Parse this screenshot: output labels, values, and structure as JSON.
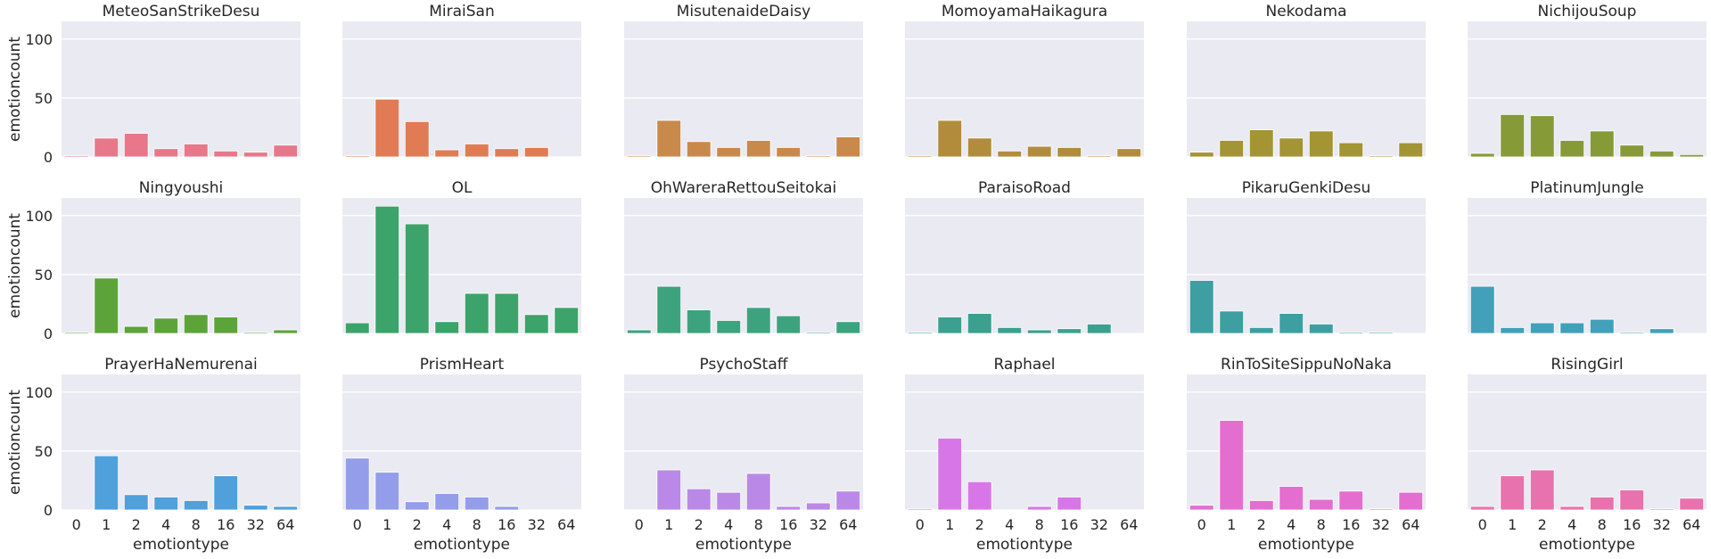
{
  "chart_data": {
    "type": "bar",
    "layout": "facet-grid",
    "rows": 3,
    "cols": 6,
    "xlabel": "emotiontype",
    "ylabel": "emotioncount",
    "categories": [
      "0",
      "1",
      "2",
      "4",
      "8",
      "16",
      "32",
      "64"
    ],
    "ylim": [
      0,
      115
    ],
    "yticks": [
      0,
      50,
      100
    ],
    "grid": true,
    "legend": "none",
    "panels": [
      {
        "title": "MeteoSanStrikeDesu",
        "color": "#e8778a",
        "values": [
          1,
          16,
          20,
          7,
          11,
          5,
          4,
          10
        ]
      },
      {
        "title": "MiraiSan",
        "color": "#e07b54",
        "values": [
          1,
          49,
          30,
          6,
          11,
          7,
          8,
          0
        ]
      },
      {
        "title": "MisutenaideDaisy",
        "color": "#c8894a",
        "values": [
          1,
          31,
          13,
          8,
          14,
          8,
          1,
          17
        ]
      },
      {
        "title": "MomoyamaHaikagura",
        "color": "#b18d3b",
        "values": [
          1,
          31,
          16,
          5,
          9,
          8,
          1,
          7
        ]
      },
      {
        "title": "Nekodama",
        "color": "#a39434",
        "values": [
          4,
          14,
          23,
          16,
          22,
          12,
          1,
          12
        ]
      },
      {
        "title": "NichijouSoup",
        "color": "#869b38",
        "values": [
          3,
          36,
          35,
          14,
          22,
          10,
          5,
          2
        ]
      },
      {
        "title": "Ningyoushi",
        "color": "#5ca43a",
        "values": [
          1,
          47,
          6,
          13,
          16,
          14,
          1,
          3
        ]
      },
      {
        "title": "OL",
        "color": "#3ca36a",
        "values": [
          9,
          108,
          93,
          10,
          34,
          34,
          16,
          22
        ]
      },
      {
        "title": "OhWareraRettouSeitokai",
        "color": "#3da37f",
        "values": [
          3,
          40,
          20,
          11,
          22,
          15,
          1,
          10
        ]
      },
      {
        "title": "ParaisoRoad",
        "color": "#3ba08f",
        "values": [
          1,
          14,
          17,
          5,
          3,
          4,
          8,
          0
        ]
      },
      {
        "title": "PikaruGenkiDesu",
        "color": "#3d9fa2",
        "values": [
          45,
          19,
          5,
          17,
          8,
          1,
          1,
          0
        ]
      },
      {
        "title": "PlatinumJungle",
        "color": "#42a0ba",
        "values": [
          40,
          5,
          9,
          9,
          12,
          1,
          4,
          0
        ]
      },
      {
        "title": "PrayerHaNemurenai",
        "color": "#4fa0db",
        "values": [
          0,
          46,
          13,
          11,
          8,
          29,
          4,
          3
        ]
      },
      {
        "title": "PrismHeart",
        "color": "#939de9",
        "values": [
          44,
          32,
          7,
          14,
          11,
          3,
          0,
          0
        ]
      },
      {
        "title": "PsychoStaff",
        "color": "#ba89e8",
        "values": [
          0,
          34,
          18,
          15,
          31,
          3,
          6,
          16
        ]
      },
      {
        "title": "Raphael",
        "color": "#d777e7",
        "values": [
          1,
          61,
          24,
          0,
          3,
          11,
          0,
          0
        ]
      },
      {
        "title": "RinToSiteSippuNoNaka",
        "color": "#e36ed0",
        "values": [
          4,
          76,
          8,
          20,
          9,
          16,
          1,
          15
        ]
      },
      {
        "title": "RisingGirl",
        "color": "#e872ae",
        "values": [
          3,
          29,
          34,
          3,
          11,
          17,
          1,
          10
        ]
      }
    ]
  }
}
